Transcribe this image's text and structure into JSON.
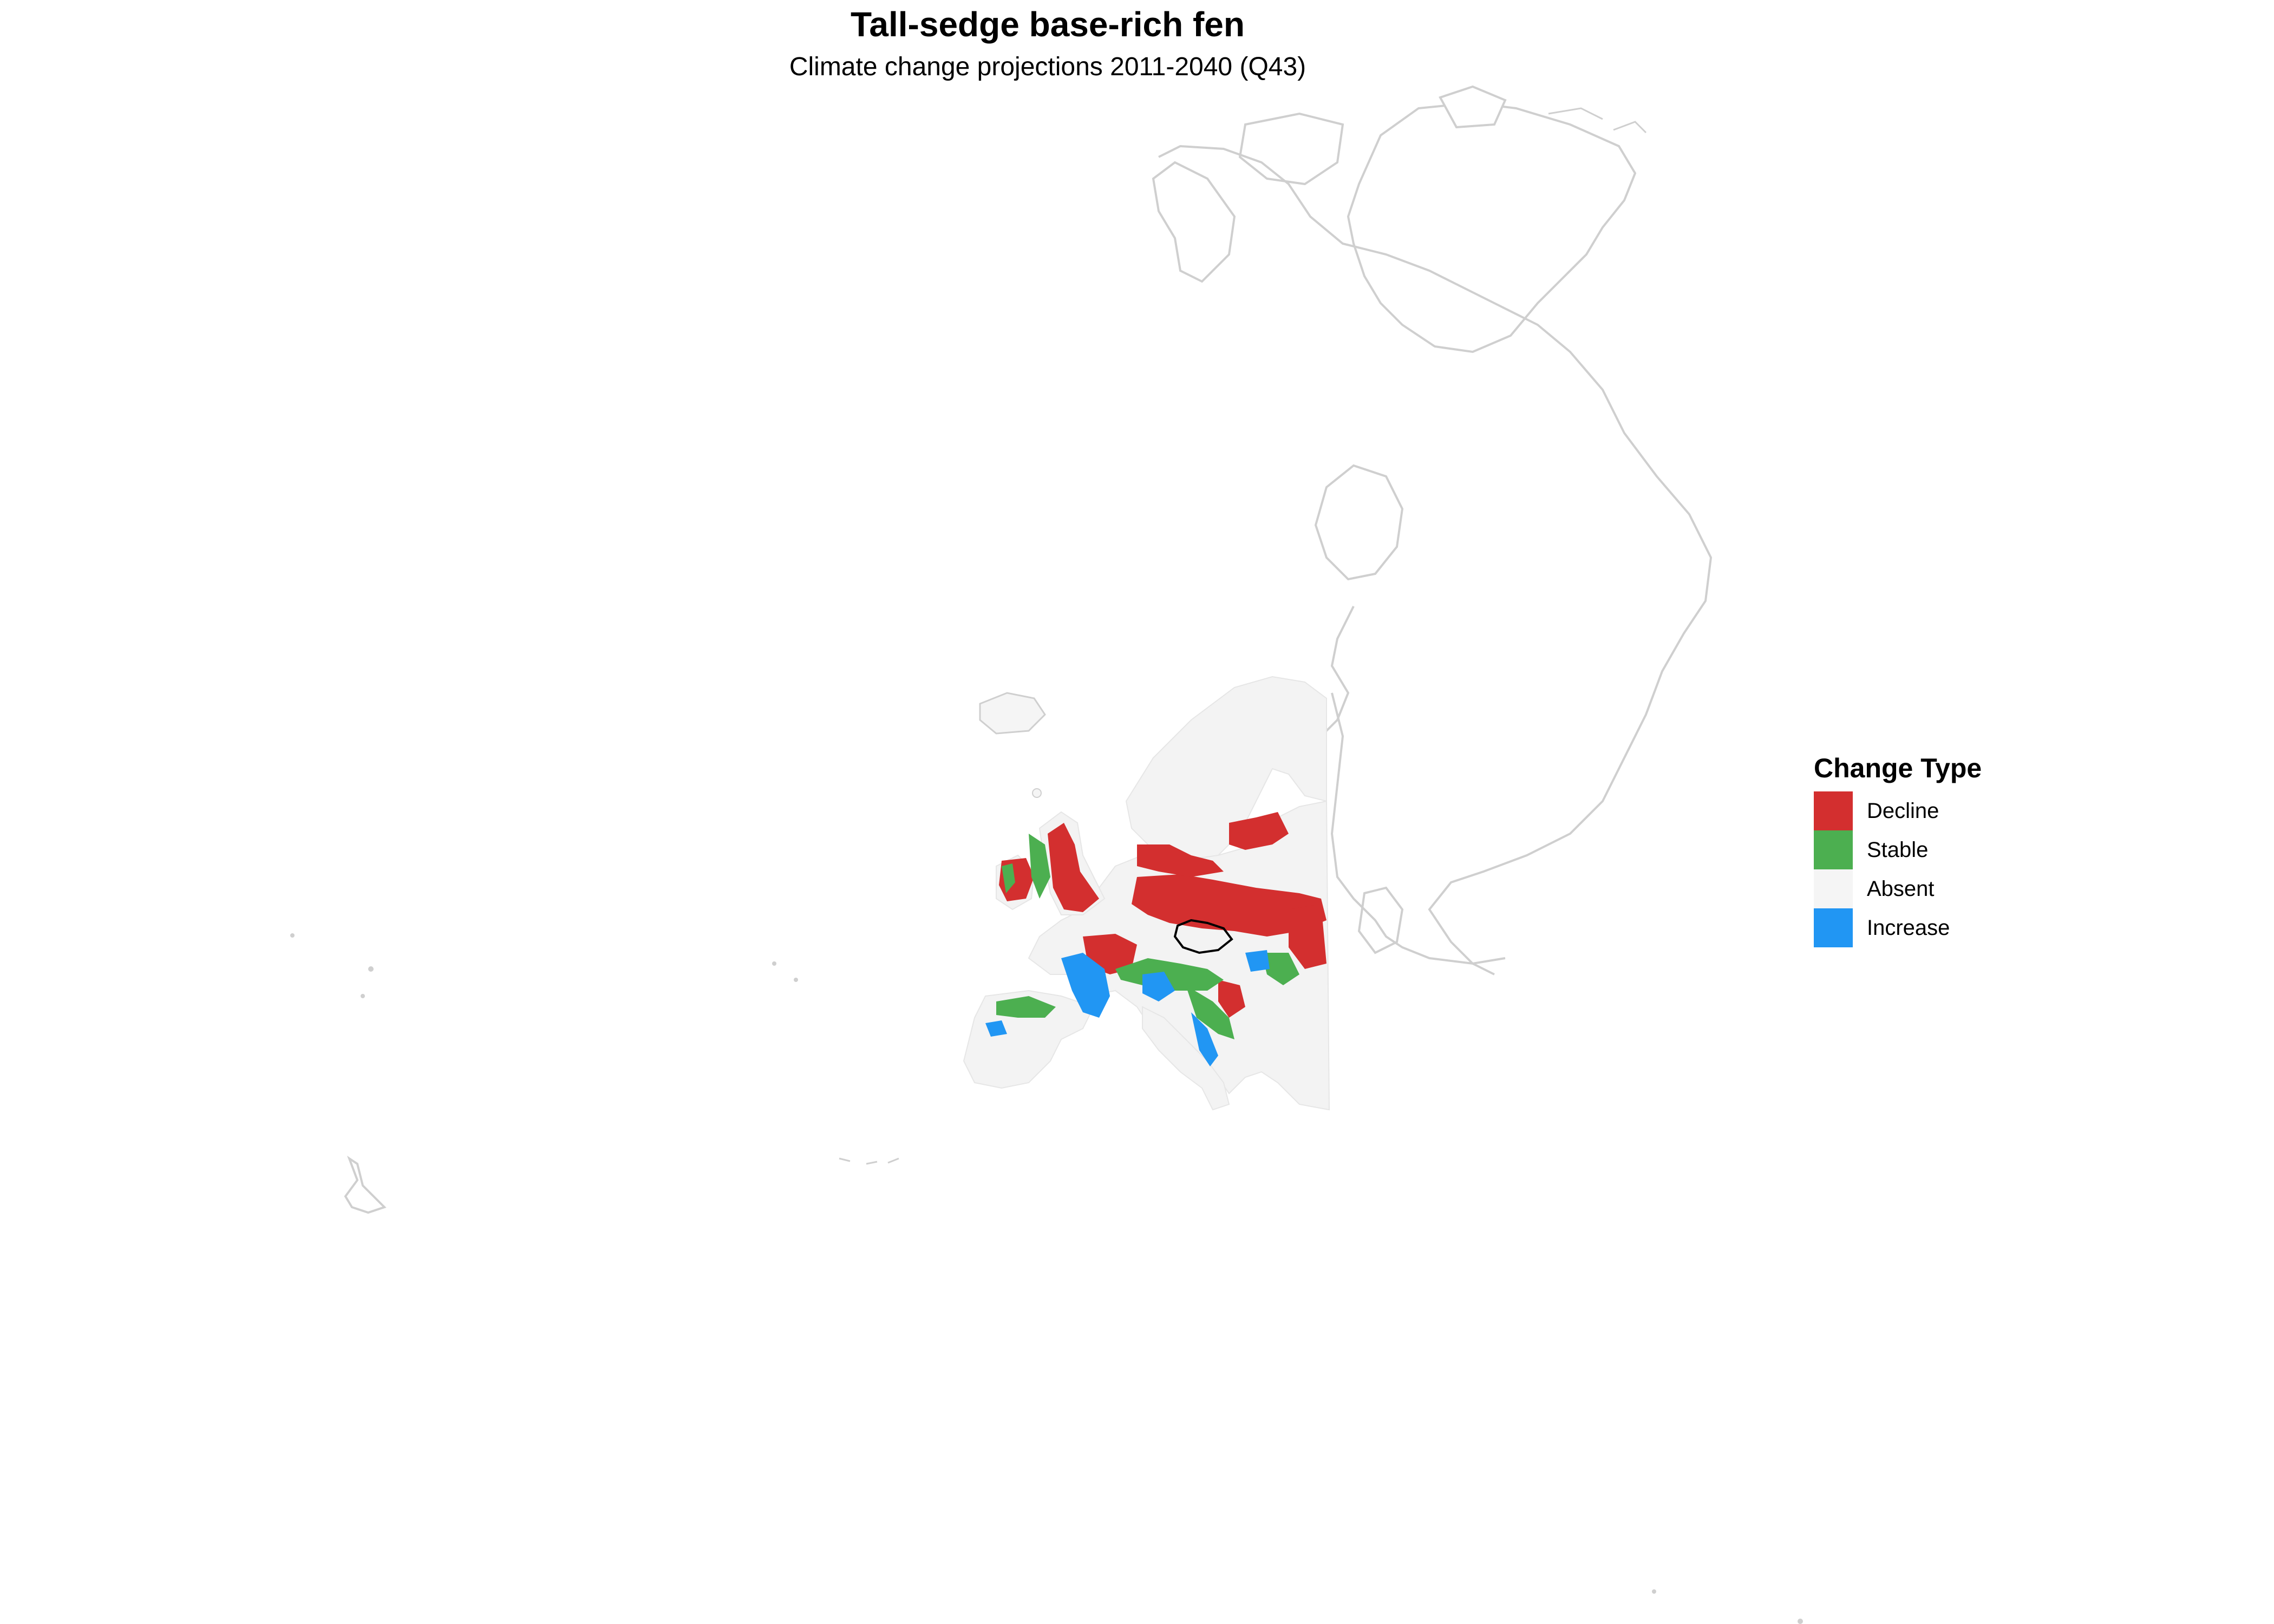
{
  "title": "Tall-sedge base-rich fen",
  "subtitle": "Climate change projections 2011-2040 (Q43)",
  "legend": {
    "title": "Change Type",
    "items": [
      {
        "label": "Decline",
        "color": "#D32F2F"
      },
      {
        "label": "Stable",
        "color": "#4CAF50"
      },
      {
        "label": "Absent",
        "color": "#F5F5F5"
      },
      {
        "label": "Increase",
        "color": "#2196F3"
      }
    ]
  },
  "colors": {
    "land_outline": "#CFCFCF",
    "highlight_border": "#000000"
  }
}
